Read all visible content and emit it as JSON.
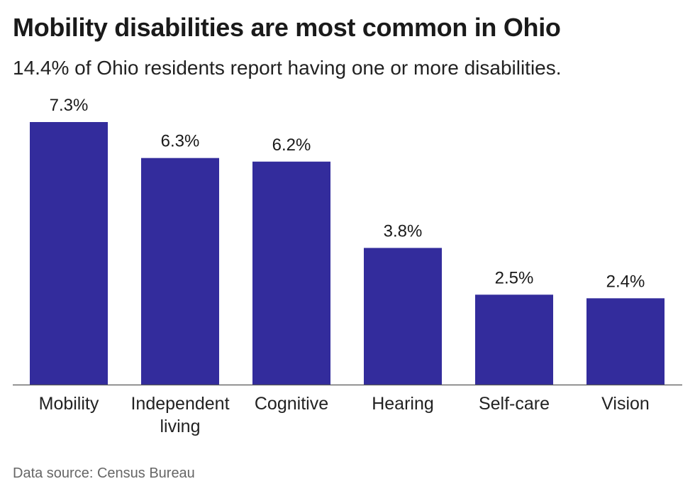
{
  "title": "Mobility disabilities are most common in Ohio",
  "subtitle": "14.4% of Ohio residents report having one or more disabilities.",
  "source": "Data source: Census Bureau",
  "colors": {
    "bar": "#332c9c",
    "axis": "#555555"
  },
  "chart_data": {
    "type": "bar",
    "categories": [
      "Mobility",
      "Independent living",
      "Cognitive",
      "Hearing",
      "Self-care",
      "Vision"
    ],
    "category_lines": [
      [
        "Mobility"
      ],
      [
        "Independent",
        "living"
      ],
      [
        "Cognitive"
      ],
      [
        "Hearing"
      ],
      [
        "Self-care"
      ],
      [
        "Vision"
      ]
    ],
    "values": [
      7.3,
      6.3,
      6.2,
      3.8,
      2.5,
      2.4
    ],
    "data_labels": [
      "7.3%",
      "6.3%",
      "6.2%",
      "3.8%",
      "2.5%",
      "2.4%"
    ],
    "title": "Mobility disabilities are most common in Ohio",
    "subtitle": "14.4% of Ohio residents report having one or more disabilities.",
    "xlabel": "",
    "ylabel": "",
    "ylim": [
      0,
      7.3
    ],
    "grid": false,
    "legend": "none"
  }
}
